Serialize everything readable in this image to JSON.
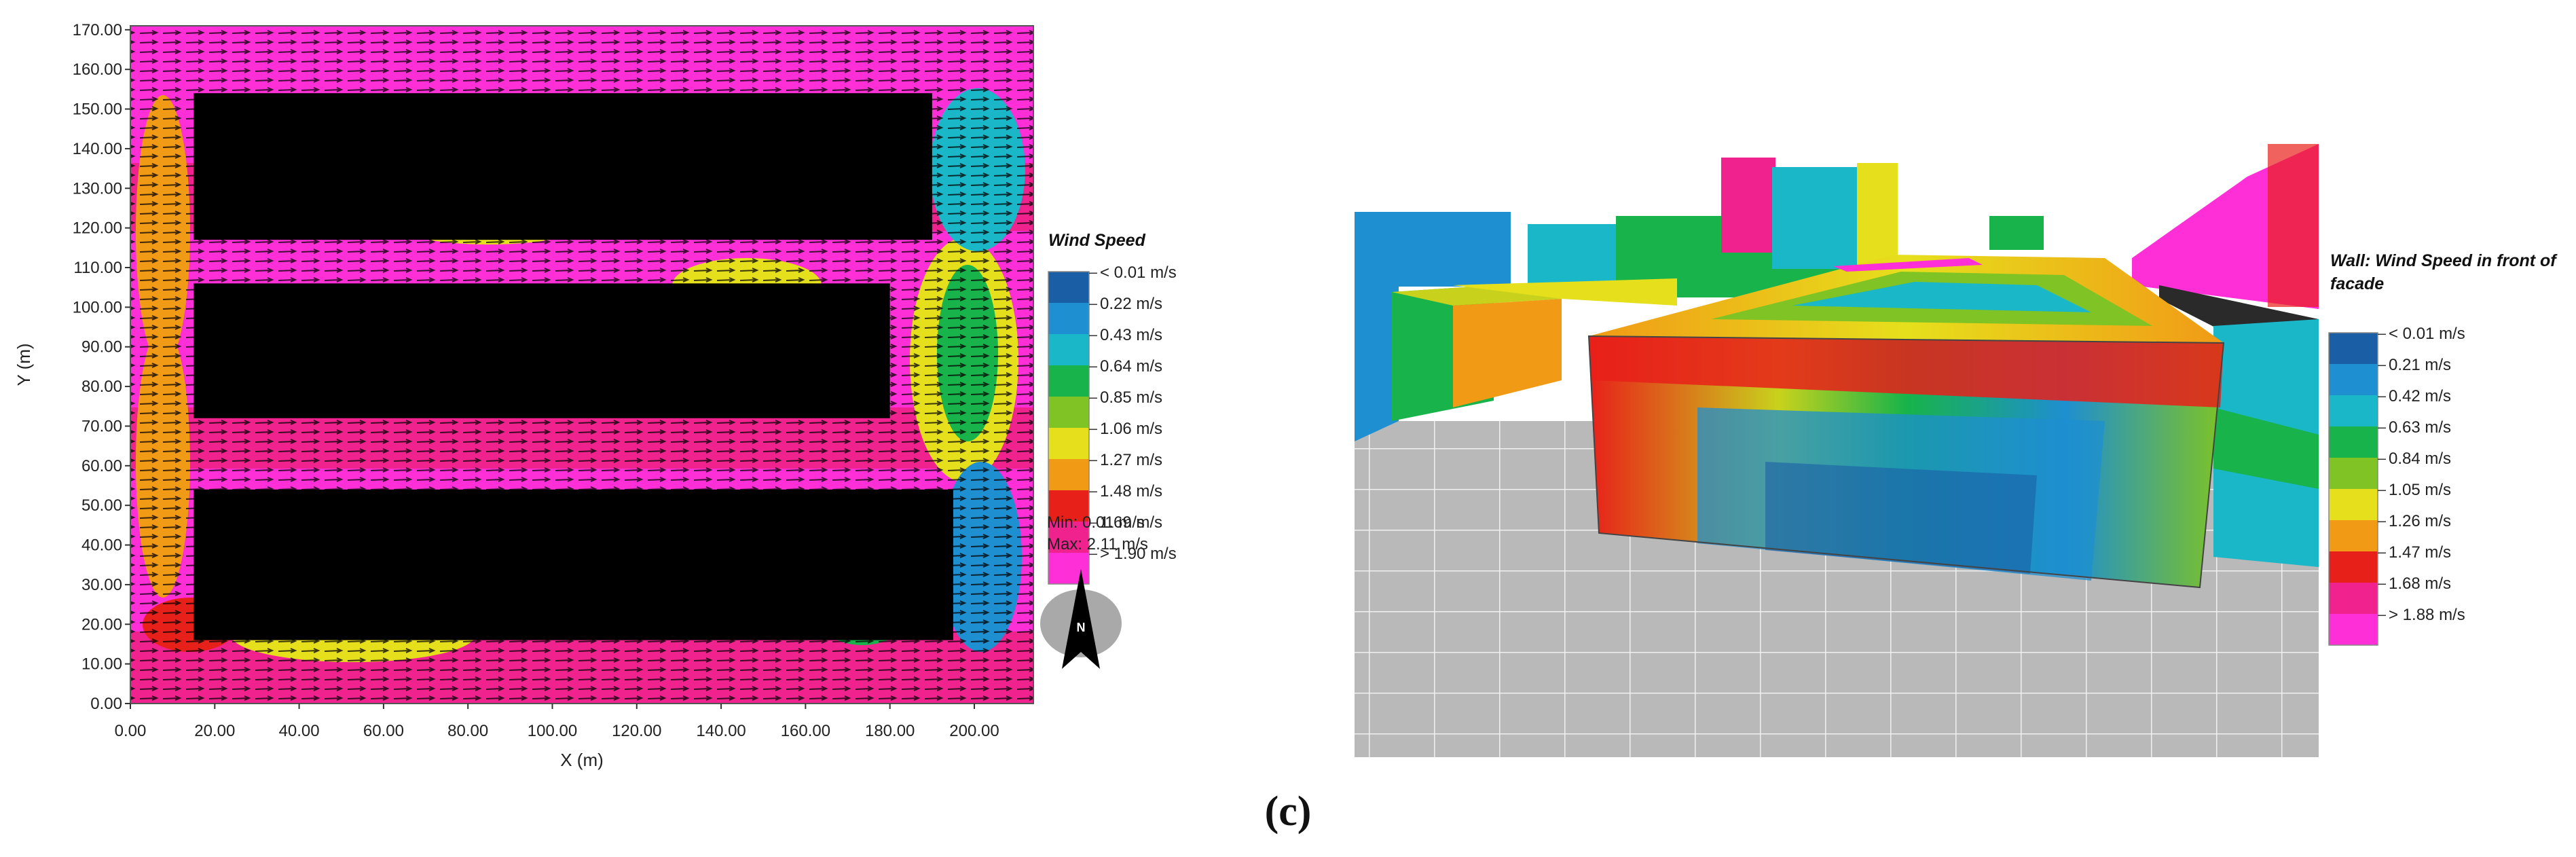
{
  "caption": "(c)",
  "chart_data": [
    {
      "type": "heatmap",
      "xlabel": "X (m)",
      "ylabel": "Y (m)",
      "xlim": [
        0,
        214
      ],
      "ylim": [
        0,
        171
      ],
      "x_ticks": [
        "0.00",
        "20.00",
        "40.00",
        "60.00",
        "80.00",
        "100.00",
        "120.00",
        "140.00",
        "160.00",
        "180.00",
        "200.00"
      ],
      "y_ticks": [
        "0.00",
        "10.00",
        "20.00",
        "30.00",
        "40.00",
        "50.00",
        "60.00",
        "70.00",
        "80.00",
        "90.00",
        "100.00",
        "110.00",
        "120.00",
        "130.00",
        "140.00",
        "150.00",
        "160.00",
        "170.00"
      ],
      "buildings": [
        {
          "x0": 15,
          "x1": 190,
          "y0": 117,
          "y1": 154
        },
        {
          "x0": 15,
          "x1": 180,
          "y0": 72,
          "y1": 106
        },
        {
          "x0": 15,
          "x1": 195,
          "y0": 16,
          "y1": 54
        }
      ],
      "legend": {
        "title": "Wind Speed",
        "entries": [
          "< 0.01 m/s",
          "0.22  m/s",
          "0.43  m/s",
          "0.64  m/s",
          "0.85  m/s",
          "1.06  m/s",
          "1.27  m/s",
          "1.48  m/s",
          "1.69  m/s",
          "> 1.90 m/s"
        ],
        "colors": [
          "#1a5fa6",
          "#1e8fd0",
          "#19b7c8",
          "#18b34a",
          "#7fc324",
          "#e6e01c",
          "#f19a16",
          "#e8201a",
          "#f0238e",
          "#ff2fd8"
        ],
        "min_text": "Min: 0.01 m/s",
        "max_text": "Max: 2.11 m/s"
      },
      "north_label": "N"
    },
    {
      "type": "3d-facade-map",
      "legend": {
        "title": "Wall: Wind Speed in front of facade",
        "entries": [
          "< 0.01 m/s",
          "0.21  m/s",
          "0.42  m/s",
          "0.63  m/s",
          "0.84  m/s",
          "1.05  m/s",
          "1.26  m/s",
          "1.47  m/s",
          "1.68  m/s",
          "> 1.88 m/s"
        ],
        "colors": [
          "#1a5fa6",
          "#1e8fd0",
          "#19b7c8",
          "#18b34a",
          "#7fc324",
          "#e6e01c",
          "#f19a16",
          "#e8201a",
          "#f0238e",
          "#ff2fd8"
        ]
      }
    }
  ]
}
